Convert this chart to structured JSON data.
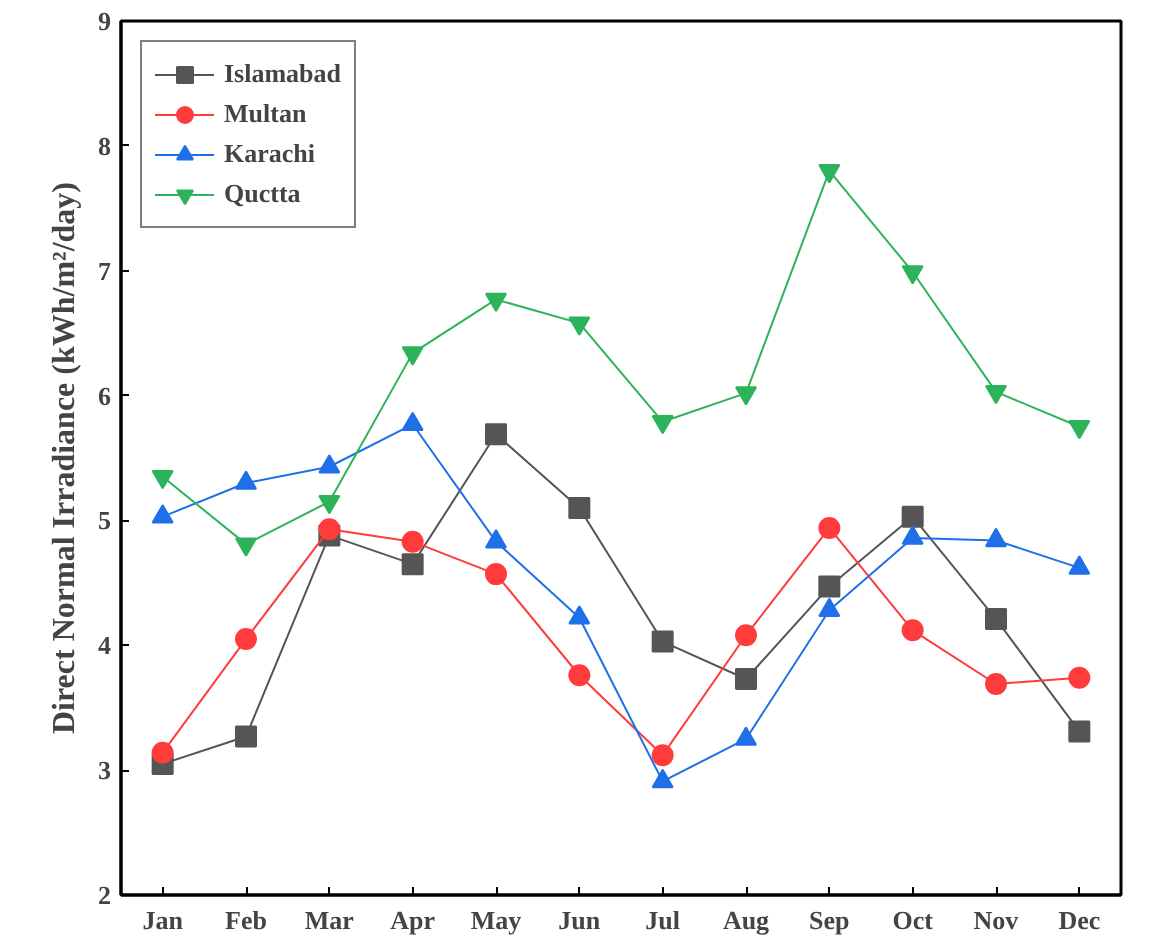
{
  "chart_data": {
    "type": "line",
    "ylabel": "Direct Normal Irradiance (kWh/m²/day)",
    "categories": [
      "Jan",
      "Feb",
      "Mar",
      "Apr",
      "May",
      "Jun",
      "Jul",
      "Aug",
      "Sep",
      "Oct",
      "Nov",
      "Dec"
    ],
    "series": [
      {
        "name": "Islamabad",
        "color": "#555555",
        "marker": "square",
        "values": [
          3.05,
          3.27,
          4.88,
          4.65,
          5.69,
          5.1,
          4.03,
          3.73,
          4.47,
          5.03,
          4.21,
          3.31
        ]
      },
      {
        "name": "Multan",
        "color": "#ff3b3b",
        "marker": "circle",
        "values": [
          3.14,
          4.05,
          4.93,
          4.83,
          4.57,
          3.76,
          3.12,
          4.08,
          4.94,
          4.12,
          3.69,
          3.74
        ]
      },
      {
        "name": "Karachi",
        "color": "#1f6fe8",
        "marker": "triangle",
        "values": [
          5.03,
          5.3,
          5.43,
          5.77,
          4.83,
          4.22,
          2.91,
          3.25,
          4.28,
          4.86,
          4.84,
          4.62
        ]
      },
      {
        "name": "Quctta",
        "color": "#2db35a",
        "marker": "triangle",
        "values": [
          5.35,
          4.81,
          5.15,
          6.34,
          6.77,
          6.58,
          5.79,
          6.02,
          7.8,
          6.99,
          6.03,
          5.75
        ]
      }
    ],
    "ylim": [
      2,
      9
    ],
    "yticks": [
      2,
      3,
      4,
      5,
      6,
      7,
      8,
      9
    ],
    "grid": false,
    "legend": "top left",
    "line_style": "solid"
  }
}
